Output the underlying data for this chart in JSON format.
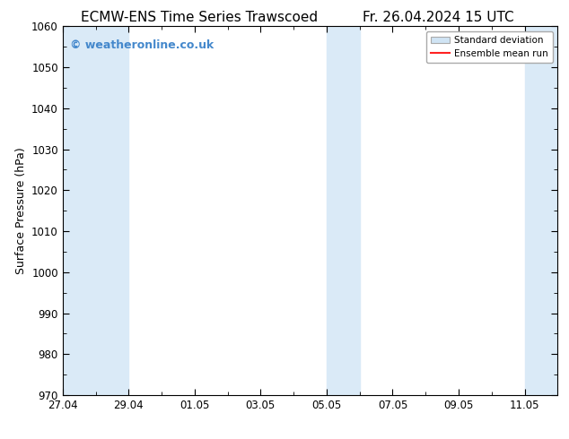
{
  "title_left": "ECMW-ENS Time Series Trawscoed",
  "title_right": "Fr. 26.04.2024 15 UTC",
  "ylabel": "Surface Pressure (hPa)",
  "ylim": [
    970,
    1060
  ],
  "yticks": [
    970,
    980,
    990,
    1000,
    1010,
    1020,
    1030,
    1040,
    1050,
    1060
  ],
  "xlabel_dates": [
    "27.04",
    "29.04",
    "01.05",
    "03.05",
    "05.05",
    "07.05",
    "09.05",
    "11.05"
  ],
  "x_positions": [
    0,
    2,
    4,
    6,
    8,
    10,
    12,
    14
  ],
  "x_min": 0,
  "x_max": 15,
  "shaded_bands": [
    {
      "x_start": 0,
      "x_end": 2
    },
    {
      "x_start": 8,
      "x_end": 9
    },
    {
      "x_start": 14,
      "x_end": 15
    }
  ],
  "shaded_color": "#daeaf7",
  "background_color": "#ffffff",
  "plot_bg_color": "#ffffff",
  "watermark_text": "© weatheronline.co.uk",
  "watermark_color": "#4488cc",
  "watermark_fontsize": 9,
  "legend_std_dev_color": "#d0e4f4",
  "legend_mean_color": "#ff2222",
  "title_fontsize": 11,
  "ylabel_fontsize": 9,
  "tick_fontsize": 8.5
}
